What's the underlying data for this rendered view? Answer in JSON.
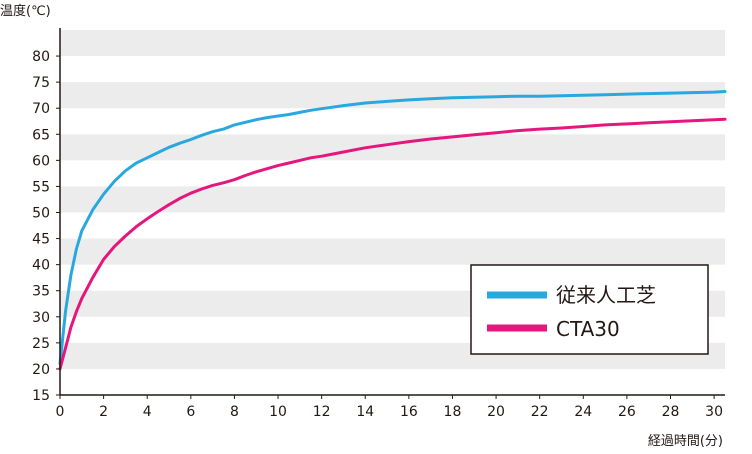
{
  "chart_data": {
    "type": "line",
    "ylabel": "温度(℃)",
    "xlabel": "経過時間(分)",
    "xlim": [
      0,
      30.5
    ],
    "ylim": [
      15,
      85
    ],
    "x_ticks": [
      0,
      2,
      4,
      6,
      8,
      10,
      12,
      14,
      16,
      18,
      20,
      22,
      24,
      26,
      28,
      30
    ],
    "y_ticks": [
      15,
      20,
      25,
      30,
      35,
      40,
      45,
      50,
      55,
      60,
      65,
      70,
      75,
      80
    ],
    "grid": "alternating horizontal bands",
    "legend_position": "center-right",
    "series": [
      {
        "name": "従来人工芝",
        "color": "#29A8E0",
        "x": [
          0,
          0.25,
          0.5,
          0.75,
          1,
          1.5,
          2,
          2.5,
          3,
          3.5,
          4,
          4.5,
          5,
          5.5,
          6,
          6.5,
          7,
          7.5,
          8,
          8.5,
          9,
          9.5,
          10,
          10.5,
          11,
          11.5,
          12,
          12.5,
          13,
          14,
          15,
          16,
          17,
          18,
          19,
          20,
          21,
          22,
          23,
          24,
          25,
          26,
          27,
          28,
          29,
          30,
          30.5
        ],
        "values": [
          21,
          31,
          38,
          43,
          46.5,
          50.5,
          53.5,
          56,
          58,
          59.5,
          60.5,
          61.5,
          62.5,
          63.3,
          64,
          64.8,
          65.5,
          66,
          66.8,
          67.3,
          67.8,
          68.2,
          68.5,
          68.8,
          69.2,
          69.6,
          69.9,
          70.2,
          70.5,
          71,
          71.3,
          71.6,
          71.8,
          72,
          72.1,
          72.2,
          72.3,
          72.3,
          72.4,
          72.5,
          72.6,
          72.7,
          72.8,
          72.9,
          73,
          73.1,
          73.2
        ]
      },
      {
        "name": "CTA30",
        "color": "#E5177E",
        "x": [
          0,
          0.25,
          0.5,
          0.75,
          1,
          1.5,
          2,
          2.5,
          3,
          3.5,
          4,
          4.5,
          5,
          5.5,
          6,
          6.5,
          7,
          7.5,
          8,
          8.5,
          9,
          9.5,
          10,
          10.5,
          11,
          11.5,
          12,
          12.5,
          13,
          14,
          15,
          16,
          17,
          18,
          19,
          20,
          21,
          22,
          23,
          24,
          25,
          26,
          27,
          28,
          29,
          30,
          30.5
        ],
        "values": [
          20,
          24,
          28,
          31,
          33.5,
          37.5,
          41,
          43.5,
          45.5,
          47.3,
          48.8,
          50.2,
          51.5,
          52.7,
          53.7,
          54.5,
          55.2,
          55.7,
          56.3,
          57.1,
          57.8,
          58.4,
          59,
          59.5,
          60,
          60.5,
          60.8,
          61.2,
          61.6,
          62.4,
          63,
          63.6,
          64.1,
          64.5,
          64.9,
          65.3,
          65.7,
          66,
          66.2,
          66.5,
          66.8,
          67,
          67.2,
          67.4,
          67.6,
          67.8,
          67.9
        ]
      }
    ]
  }
}
